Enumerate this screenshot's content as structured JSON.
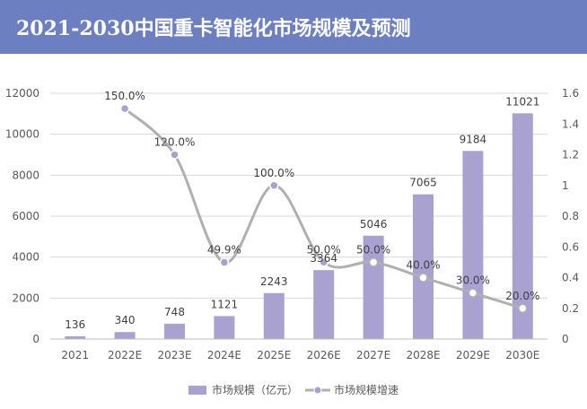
{
  "header": {
    "title": "2021-2030中国重卡智能化市场规模及预测"
  },
  "chart_data": {
    "type": "bar",
    "categories": [
      "2021",
      "2022E",
      "2023E",
      "2024E",
      "2025E",
      "2026E",
      "2027E",
      "2028E",
      "2029E",
      "2030E"
    ],
    "series": [
      {
        "name": "市场规模（亿元）",
        "type": "bar",
        "axis": "left",
        "color": "#a9a1cf",
        "values": [
          136,
          340,
          748,
          1121,
          2243,
          3364,
          5046,
          7065,
          9184,
          11021
        ],
        "labels": [
          "136",
          "340",
          "748",
          "1121",
          "2243",
          "3364",
          "5046",
          "7065",
          "9184",
          "11021"
        ]
      },
      {
        "name": "市场规模增速",
        "type": "line",
        "axis": "right",
        "color": "#b0b0b0",
        "values": [
          null,
          1.5,
          1.2,
          0.499,
          1.0,
          0.5,
          0.5,
          0.4,
          0.3,
          0.2
        ],
        "labels": [
          "",
          "150.0%",
          "120.0%",
          "49.9%",
          "100.0%",
          "50.0%",
          "50.0%",
          "40.0%",
          "30.0%",
          "20.0%"
        ]
      }
    ],
    "y_left": {
      "ylim": [
        0,
        12000
      ],
      "ticks": [
        "0",
        "2000",
        "4000",
        "6000",
        "8000",
        "10000",
        "12000"
      ]
    },
    "y_right": {
      "ylim": [
        0,
        1.6
      ],
      "ticks": [
        "0",
        "0.2",
        "0.4",
        "0.6",
        "0.8",
        "1",
        "1.2",
        "1.4",
        "1.6"
      ]
    },
    "grid": true,
    "legend": "bottom-center"
  }
}
